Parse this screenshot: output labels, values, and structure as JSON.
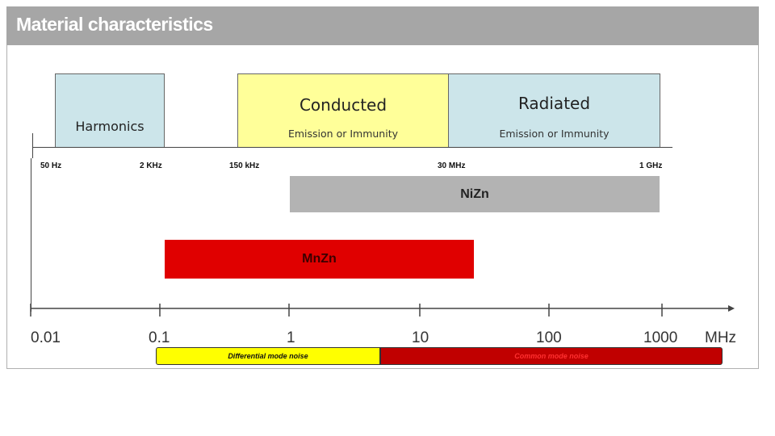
{
  "header": {
    "title": "Material characteristics"
  },
  "bands": {
    "harmonics": {
      "title": "Harmonics",
      "color": "#cce5ea"
    },
    "conducted": {
      "title": "Conducted",
      "subtitle": "Emission or Immunity",
      "color": "#ffff99"
    },
    "radiated": {
      "title": "Radiated",
      "subtitle": "Emission or Immunity",
      "color": "#cce5ea"
    }
  },
  "frequency_labels": [
    "50 Hz",
    "2 KHz",
    "150 kHz",
    "30 MHz",
    "1 GHz"
  ],
  "materials": {
    "nizn": {
      "label": "NiZn",
      "color": "#b3b3b3",
      "range_mhz": [
        1,
        1000
      ]
    },
    "mnzn": {
      "label": "MnZn",
      "color": "#e00000",
      "range_mhz": [
        0.1,
        30
      ]
    }
  },
  "axis": {
    "ticks": [
      "0.01",
      "0.1",
      "1",
      "10",
      "100",
      "1000"
    ],
    "unit": "MHz"
  },
  "noise": {
    "differential": {
      "label": "Differential mode noise",
      "color": "#ffff00"
    },
    "common": {
      "label": "Common mode noise",
      "color": "#c00000"
    }
  }
}
